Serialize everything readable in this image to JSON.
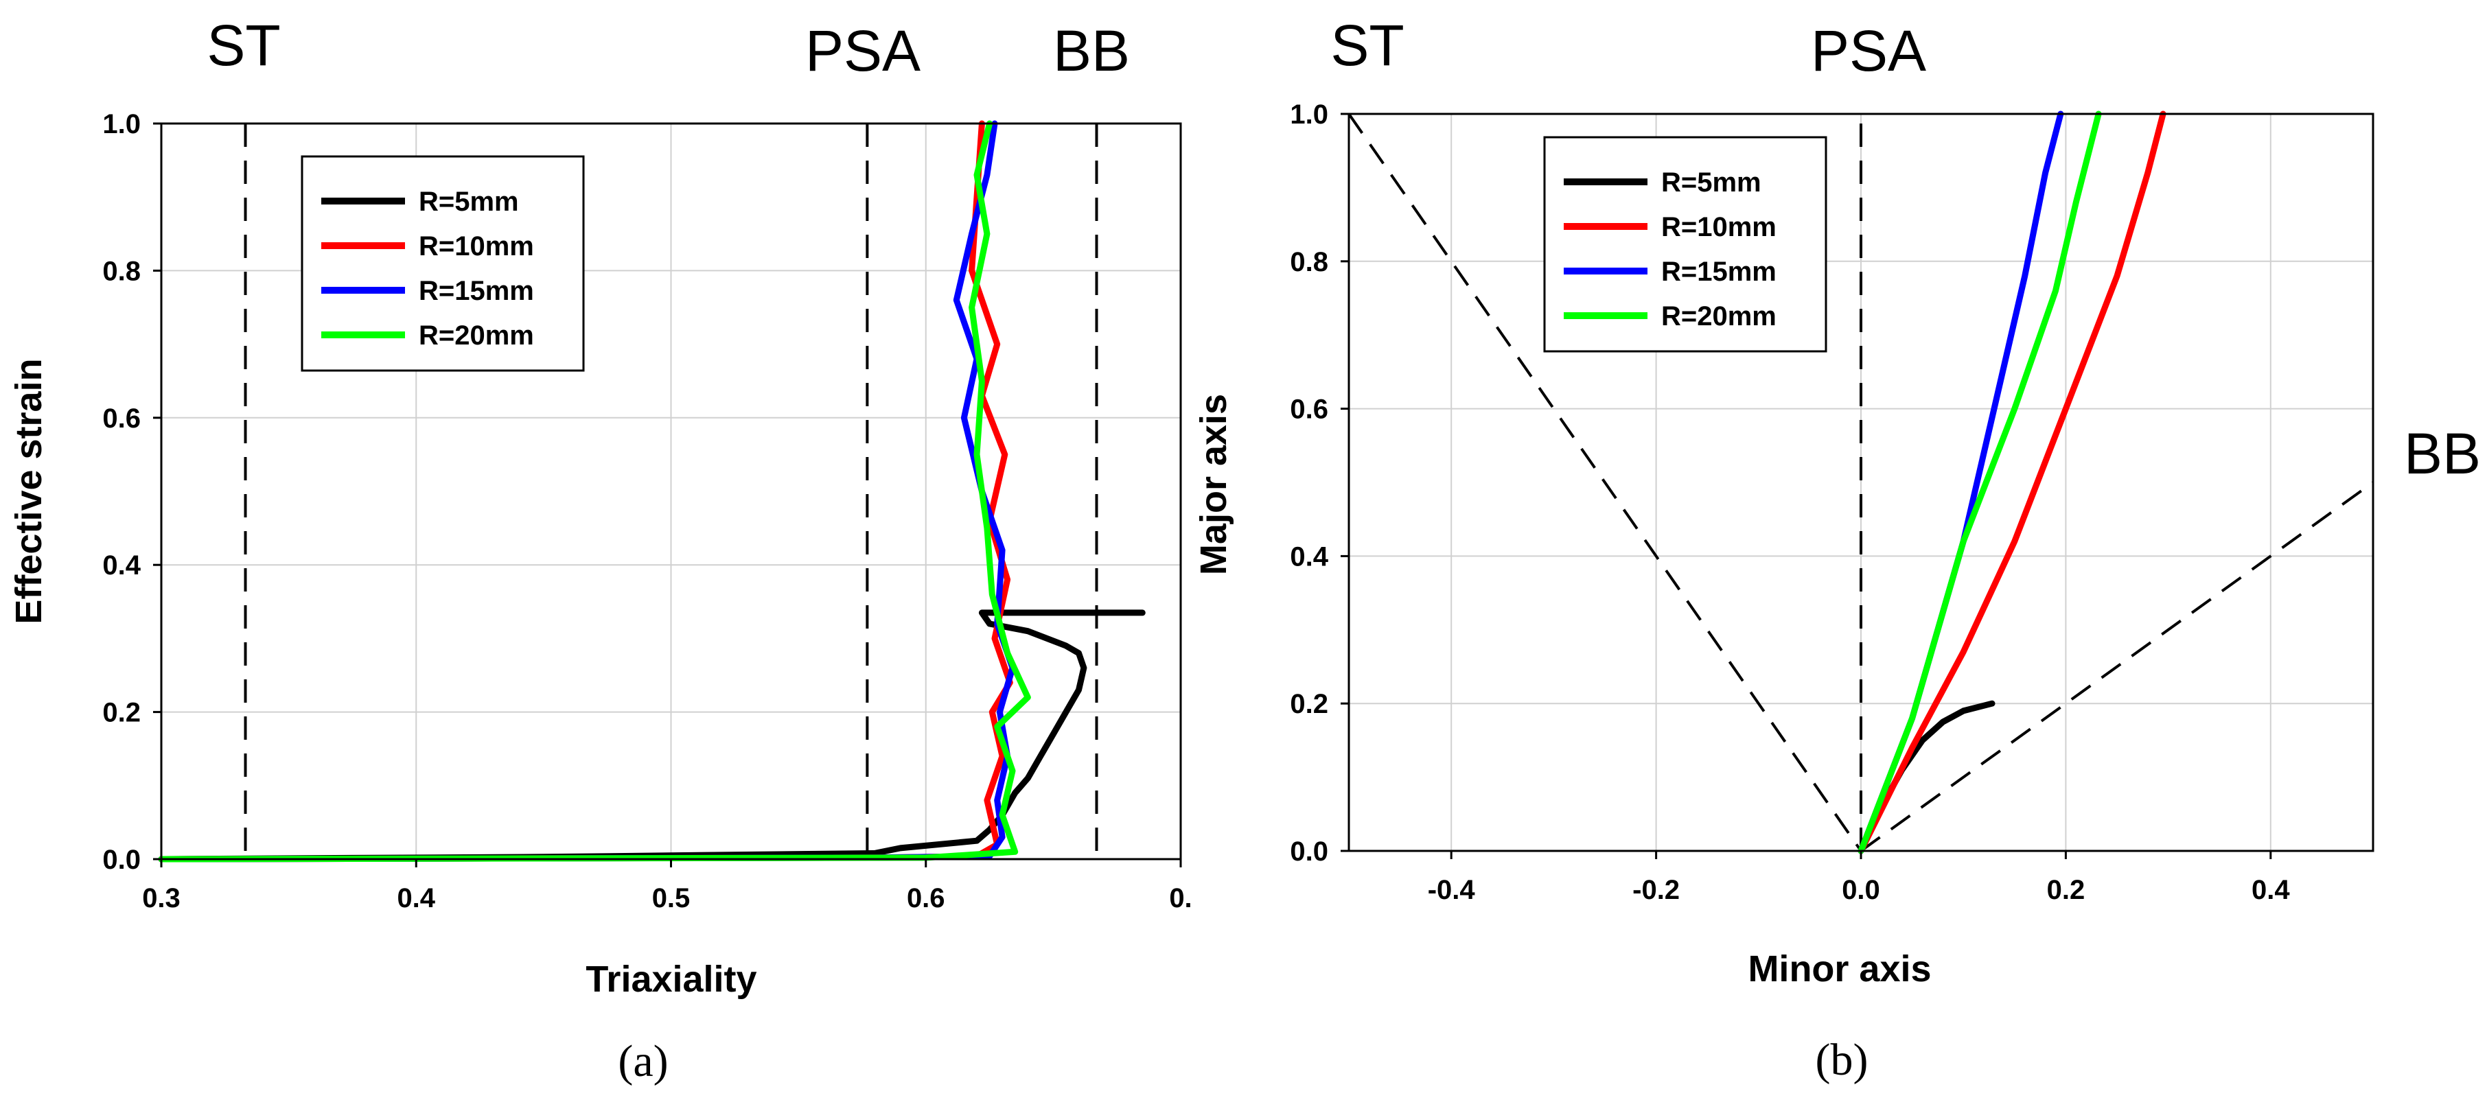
{
  "chart_data": [
    {
      "type": "line",
      "panel_label": "(a)",
      "xlabel": "Triaxiality",
      "ylabel": "Effective strain",
      "xlim": [
        0.3,
        0.7
      ],
      "ylim": [
        0.0,
        1.0
      ],
      "xticks": [
        "0.3",
        "0.4",
        "0.5",
        "0.6",
        "0."
      ],
      "yticks": [
        "0.0",
        "0.2",
        "0.4",
        "0.6",
        "0.8",
        "1.0"
      ],
      "grid": true,
      "legend_position": "top-left",
      "reference_lines": [
        {
          "label": "ST",
          "x": 0.333
        },
        {
          "label": "PSA",
          "x": 0.577
        },
        {
          "label": "BB",
          "x": 0.667
        }
      ],
      "series": [
        {
          "name": "R=5mm",
          "color": "#000000",
          "x": [
            0.3,
            0.45,
            0.58,
            0.59,
            0.62,
            0.625,
            0.63,
            0.635,
            0.64,
            0.645,
            0.65,
            0.655,
            0.66,
            0.662,
            0.66,
            0.655,
            0.64,
            0.625,
            0.622,
            0.685
          ],
          "y": [
            0.0,
            0.003,
            0.008,
            0.015,
            0.025,
            0.04,
            0.06,
            0.09,
            0.11,
            0.14,
            0.17,
            0.2,
            0.23,
            0.26,
            0.28,
            0.29,
            0.31,
            0.32,
            0.335,
            0.335
          ]
        },
        {
          "name": "R=10mm",
          "color": "#ff0000",
          "x": [
            0.3,
            0.58,
            0.62,
            0.628,
            0.624,
            0.63,
            0.626,
            0.633,
            0.627,
            0.632,
            0.625,
            0.631,
            0.622,
            0.628,
            0.618,
            0.62,
            0.622
          ],
          "y": [
            0.0,
            0.002,
            0.004,
            0.02,
            0.08,
            0.14,
            0.2,
            0.24,
            0.3,
            0.38,
            0.46,
            0.55,
            0.63,
            0.7,
            0.8,
            0.9,
            1.0
          ]
        },
        {
          "name": "R=15mm",
          "color": "#0000ff",
          "x": [
            0.3,
            0.58,
            0.625,
            0.63,
            0.628,
            0.632,
            0.629,
            0.634,
            0.628,
            0.63,
            0.622,
            0.615,
            0.62,
            0.612,
            0.618,
            0.624,
            0.627
          ],
          "y": [
            0.0,
            0.002,
            0.004,
            0.03,
            0.08,
            0.14,
            0.2,
            0.26,
            0.32,
            0.42,
            0.5,
            0.6,
            0.68,
            0.76,
            0.85,
            0.93,
            1.0
          ]
        },
        {
          "name": "R=20mm",
          "color": "#00ff00",
          "x": [
            0.3,
            0.6,
            0.635,
            0.63,
            0.634,
            0.628,
            0.64,
            0.632,
            0.626,
            0.624,
            0.62,
            0.622,
            0.618,
            0.624,
            0.62,
            0.625
          ],
          "y": [
            0.0,
            0.002,
            0.01,
            0.06,
            0.12,
            0.18,
            0.22,
            0.28,
            0.36,
            0.45,
            0.55,
            0.65,
            0.75,
            0.85,
            0.93,
            1.0
          ]
        }
      ]
    },
    {
      "type": "line",
      "panel_label": "(b)",
      "xlabel": "Minor axis",
      "ylabel": "Major axis",
      "xlim": [
        -0.5,
        0.5
      ],
      "ylim": [
        0.0,
        1.0
      ],
      "xticks": [
        "-0.4",
        "-0.2",
        "0.0",
        "0.2",
        "0.4"
      ],
      "yticks": [
        "0.0",
        "0.2",
        "0.4",
        "0.6",
        "0.8",
        "1.0"
      ],
      "grid": true,
      "legend_position": "top-center",
      "reference_lines": [
        {
          "label": "ST",
          "x1": -0.5,
          "y1": 1.0,
          "x2": 0.0,
          "y2": 0.0
        },
        {
          "label": "PSA",
          "x1": 0.0,
          "y1": 0.0,
          "x2": 0.0,
          "y2": 1.0
        },
        {
          "label": "BB",
          "x1": 0.0,
          "y1": 0.0,
          "x2": 0.5,
          "y2": 0.5
        }
      ],
      "series": [
        {
          "name": "R=5mm",
          "color": "#000000",
          "x": [
            0.0,
            0.02,
            0.04,
            0.06,
            0.08,
            0.1,
            0.128
          ],
          "y": [
            0.0,
            0.06,
            0.11,
            0.15,
            0.175,
            0.19,
            0.2
          ]
        },
        {
          "name": "R=10mm",
          "color": "#ff0000",
          "x": [
            0.0,
            0.05,
            0.1,
            0.15,
            0.2,
            0.25,
            0.28,
            0.295
          ],
          "y": [
            0.0,
            0.14,
            0.27,
            0.42,
            0.6,
            0.78,
            0.92,
            1.0
          ]
        },
        {
          "name": "R=15mm",
          "color": "#0000ff",
          "x": [
            0.0,
            0.05,
            0.1,
            0.13,
            0.16,
            0.18,
            0.195
          ],
          "y": [
            0.0,
            0.18,
            0.42,
            0.6,
            0.78,
            0.92,
            1.0
          ]
        },
        {
          "name": "R=20mm",
          "color": "#00ff00",
          "x": [
            0.0,
            0.05,
            0.1,
            0.15,
            0.19,
            0.21,
            0.232
          ],
          "y": [
            0.0,
            0.18,
            0.42,
            0.6,
            0.76,
            0.88,
            1.0
          ]
        }
      ]
    }
  ]
}
